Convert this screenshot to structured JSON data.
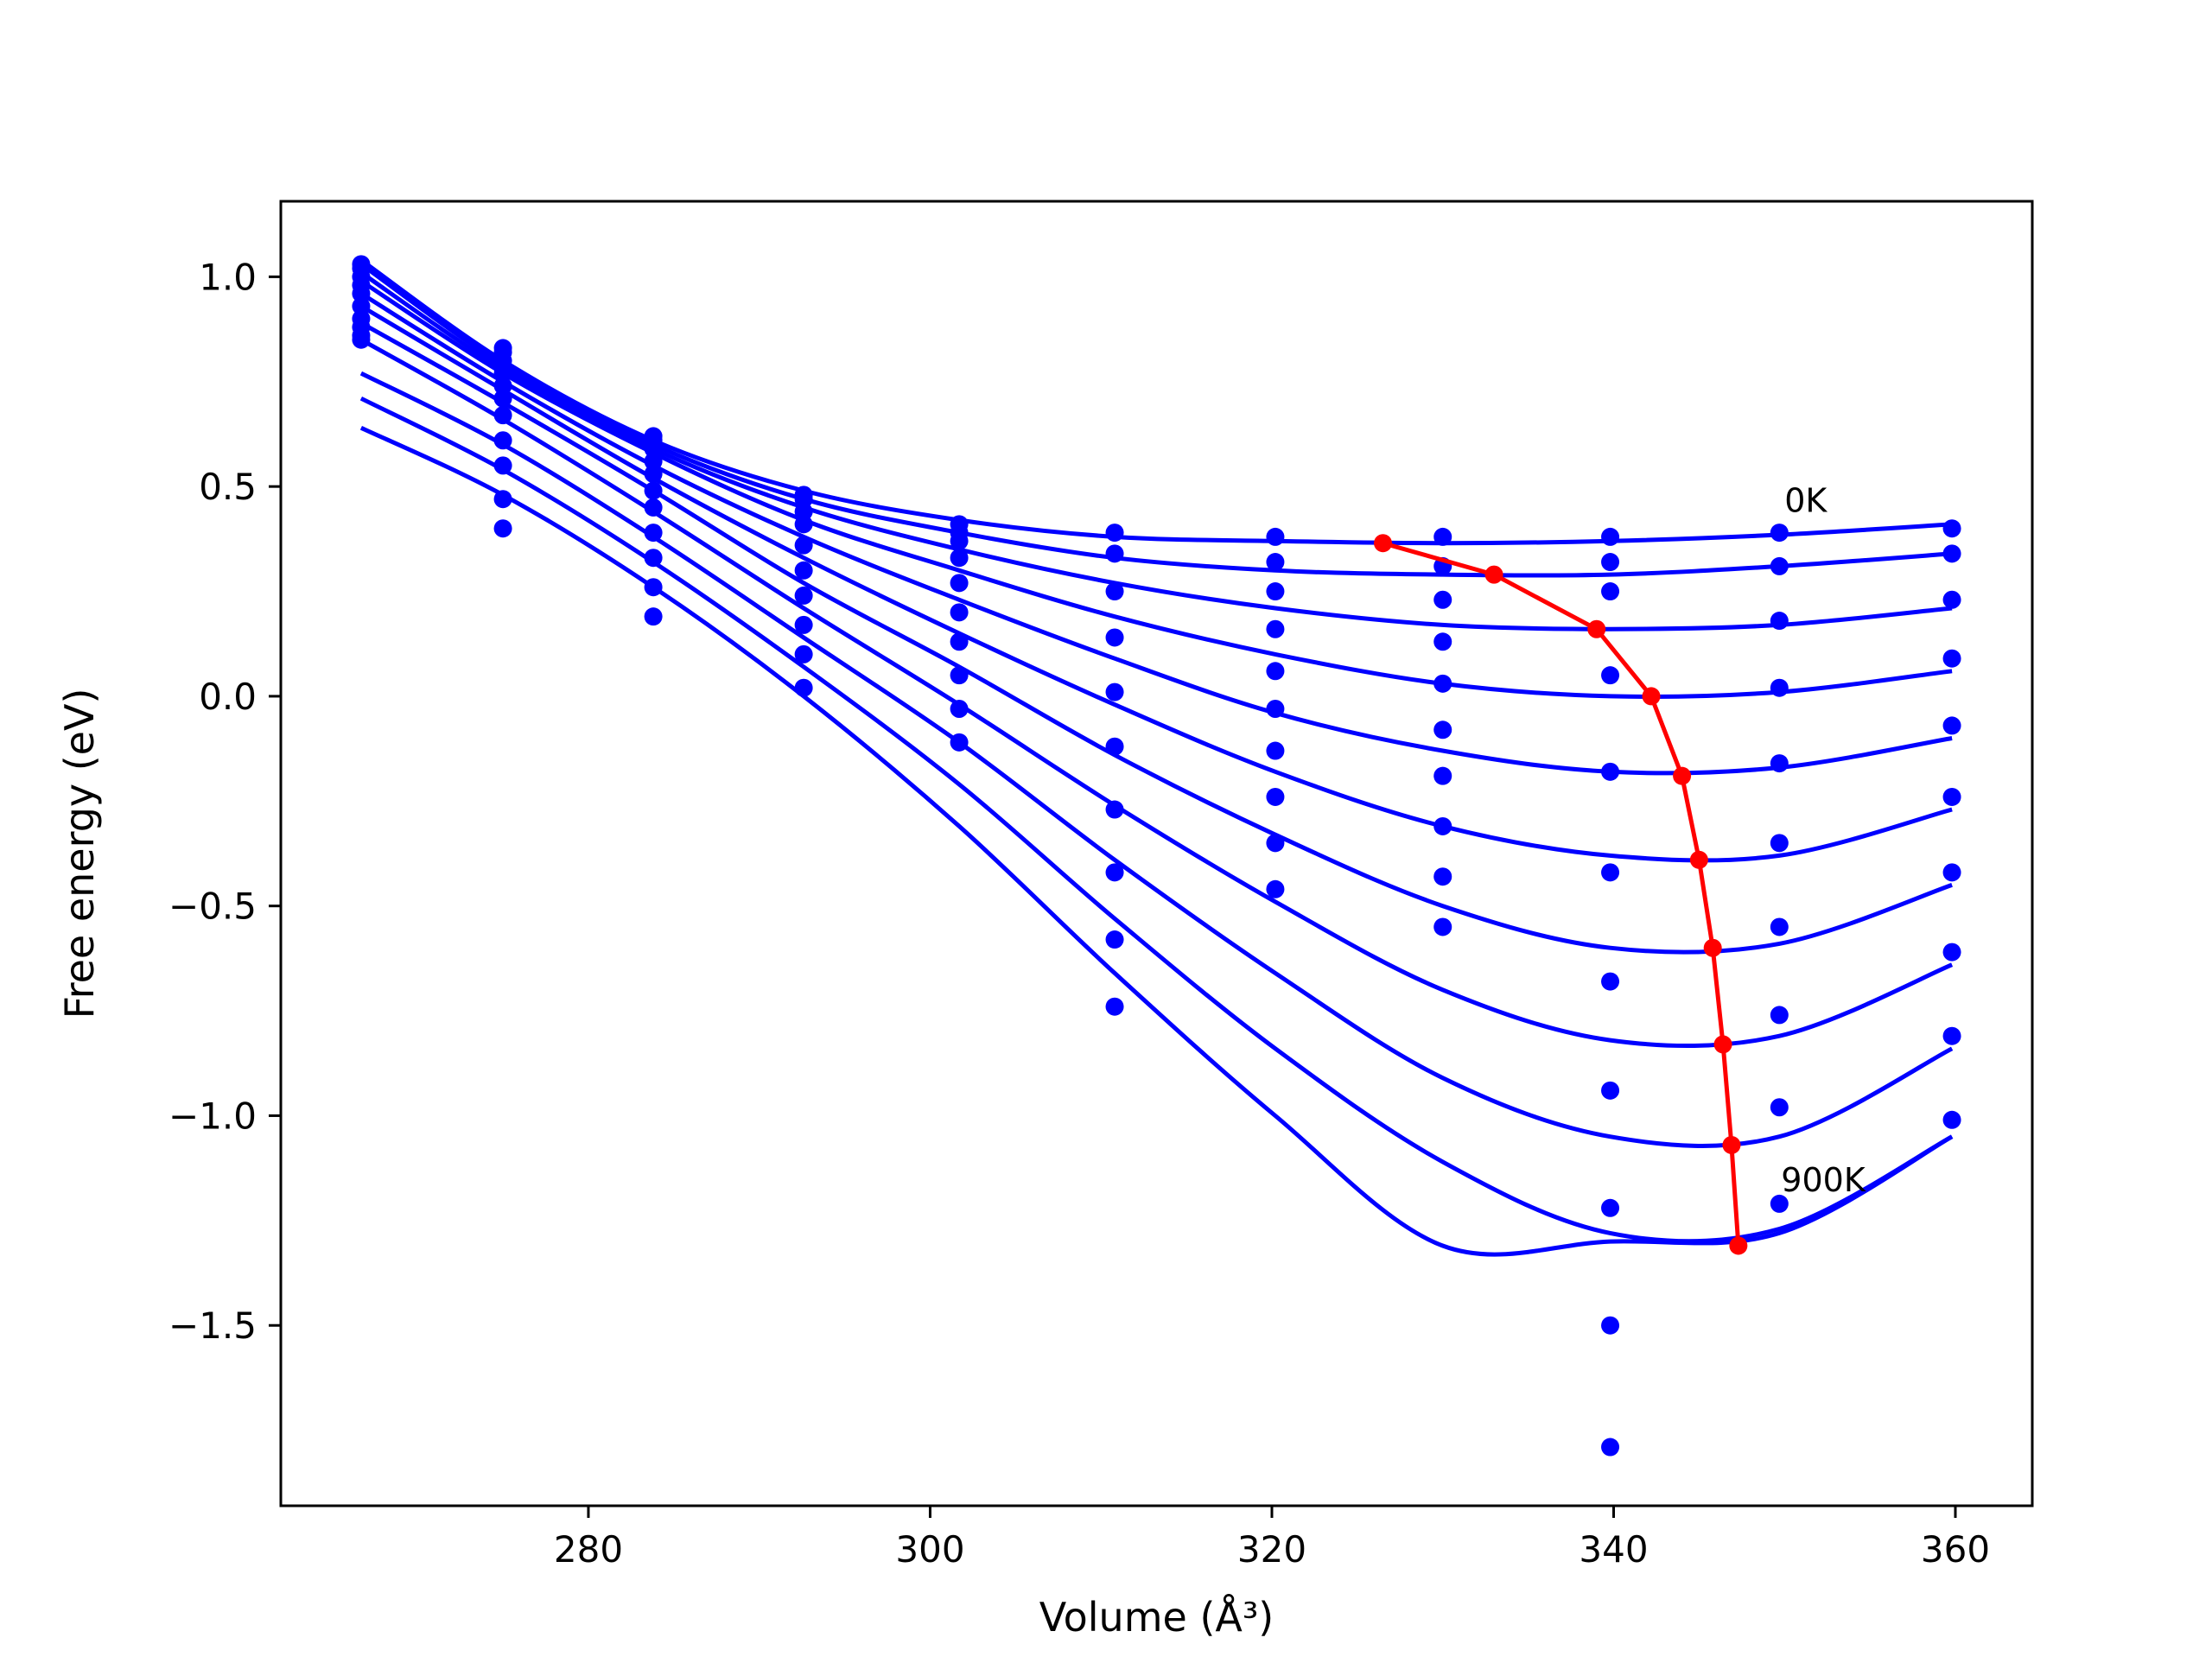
{
  "chart_data": {
    "type": "line",
    "xlabel": "Volume (Å³)",
    "ylabel": "Free energy (eV)",
    "xlim": [
      262,
      364.5
    ],
    "ylim": [
      -1.93,
      1.18
    ],
    "xticks": [
      280,
      300,
      320,
      340,
      360
    ],
    "xtick_labels": [
      "280",
      "300",
      "320",
      "340",
      "360"
    ],
    "yticks": [
      1.0,
      0.5,
      0.0,
      -0.5,
      -1.0,
      -1.5
    ],
    "ytick_labels": [
      "1.0",
      "0.5",
      "0.0",
      "−0.5",
      "−1.0",
      "−1.5"
    ],
    "grid": false,
    "annotations": [
      {
        "text": "0K",
        "x": 350.0,
        "y": 0.44
      },
      {
        "text": "900K",
        "x": 349.8,
        "y": -1.18
      }
    ],
    "colors": {
      "curves": "#0000ff",
      "points": "#0000ff",
      "minimum": "#ff0000",
      "frame": "#000000"
    },
    "volumes": [
      266.7,
      275.0,
      283.8,
      292.6,
      301.7,
      310.8,
      320.2,
      330.0,
      339.8,
      349.7,
      359.8
    ],
    "point_series": [
      {
        "values": [
          1.03,
          0.83,
          0.62,
          0.48,
          0.41,
          0.39,
          0.38,
          0.38,
          0.38,
          0.39,
          0.4
        ]
      },
      {
        "values": [
          1.02,
          0.82,
          0.61,
          0.47,
          0.39,
          0.34,
          0.32,
          0.31,
          0.32,
          0.31,
          0.34
        ]
      },
      {
        "values": [
          1.0,
          0.8,
          0.59,
          0.44,
          0.37,
          0.25,
          0.25,
          0.23,
          0.25,
          0.18,
          0.23
        ]
      },
      {
        "values": [
          0.98,
          0.77,
          0.56,
          0.41,
          0.33,
          0.14,
          0.16,
          0.13,
          0.05,
          0.02,
          0.09
        ]
      },
      {
        "values": [
          0.96,
          0.74,
          0.53,
          0.36,
          0.27,
          0.01,
          0.06,
          0.03,
          -0.18,
          -0.16,
          -0.07
        ]
      },
      {
        "values": [
          0.93,
          0.71,
          0.49,
          0.3,
          0.2,
          -0.12,
          -0.03,
          -0.08,
          -0.42,
          -0.35,
          -0.24
        ]
      },
      {
        "values": [
          0.9,
          0.67,
          0.45,
          0.24,
          0.13,
          -0.27,
          -0.13,
          -0.19,
          -0.68,
          -0.55,
          -0.42
        ]
      },
      {
        "values": [
          0.88,
          0.61,
          0.39,
          0.17,
          0.05,
          -0.42,
          -0.24,
          -0.31,
          -0.94,
          -0.76,
          -0.61
        ]
      },
      {
        "values": [
          0.86,
          0.55,
          0.33,
          0.1,
          -0.03,
          -0.58,
          -0.35,
          -0.43,
          -1.22,
          -0.98,
          -0.81
        ]
      },
      {
        "values": [
          0.85,
          0.47,
          0.26,
          0.02,
          -0.11,
          -0.74,
          -0.46,
          -0.55,
          -1.5,
          -1.21,
          -1.01
        ]
      },
      {
        "values": [
          null,
          0.4,
          0.19,
          null,
          null,
          null,
          null,
          null,
          -1.79,
          null,
          null
        ]
      }
    ],
    "curve_x": [
      266.7,
      275,
      283.8,
      292.6,
      301.7,
      310.8,
      320.2,
      330,
      339.8,
      349.7,
      359.8
    ],
    "curves": [
      {
        "label": "0K",
        "values": [
          1.04,
          0.8,
          0.61,
          0.49,
          0.42,
          0.38,
          0.37,
          0.365,
          0.37,
          0.385,
          0.41
        ]
      },
      {
        "values": [
          1.03,
          0.79,
          0.6,
          0.47,
          0.39,
          0.33,
          0.3,
          0.29,
          0.29,
          0.31,
          0.34
        ]
      },
      {
        "values": [
          1.01,
          0.78,
          0.59,
          0.45,
          0.35,
          0.27,
          0.21,
          0.17,
          0.16,
          0.17,
          0.21
        ]
      },
      {
        "values": [
          0.99,
          0.77,
          0.58,
          0.42,
          0.3,
          0.19,
          0.1,
          0.03,
          0.0,
          0.01,
          0.06
        ]
      },
      {
        "values": [
          0.96,
          0.75,
          0.55,
          0.38,
          0.23,
          0.09,
          -0.04,
          -0.13,
          -0.18,
          -0.17,
          -0.1
        ]
      },
      {
        "values": [
          0.93,
          0.73,
          0.52,
          0.33,
          0.15,
          -0.02,
          -0.18,
          -0.31,
          -0.38,
          -0.38,
          -0.27
        ]
      },
      {
        "values": [
          0.89,
          0.7,
          0.49,
          0.27,
          0.07,
          -0.14,
          -0.33,
          -0.5,
          -0.6,
          -0.59,
          -0.45
        ]
      },
      {
        "values": [
          0.85,
          0.66,
          0.44,
          0.21,
          -0.02,
          -0.26,
          -0.49,
          -0.7,
          -0.82,
          -0.81,
          -0.64
        ]
      },
      {
        "values": [
          0.77,
          0.6,
          0.38,
          0.14,
          -0.11,
          -0.39,
          -0.66,
          -0.91,
          -1.05,
          -1.05,
          -0.84
        ]
      },
      {
        "values": [
          0.71,
          0.54,
          0.32,
          0.07,
          -0.21,
          -0.53,
          -0.84,
          -1.11,
          -1.28,
          -1.27,
          -1.05
        ]
      },
      {
        "label": "900K",
        "values": [
          0.64,
          0.48,
          0.26,
          0.0,
          -0.31,
          -0.66,
          -1.0,
          -1.31,
          -1.3,
          -1.28,
          -1.05
        ]
      }
    ],
    "minimum_line": {
      "x": [
        326.5,
        333.0,
        339.0,
        342.2,
        344.0,
        345.0,
        345.8,
        346.4,
        346.9,
        347.3
      ],
      "y": [
        0.365,
        0.29,
        0.16,
        0.0,
        -0.19,
        -0.39,
        -0.6,
        -0.83,
        -1.07,
        -1.31
      ]
    }
  }
}
